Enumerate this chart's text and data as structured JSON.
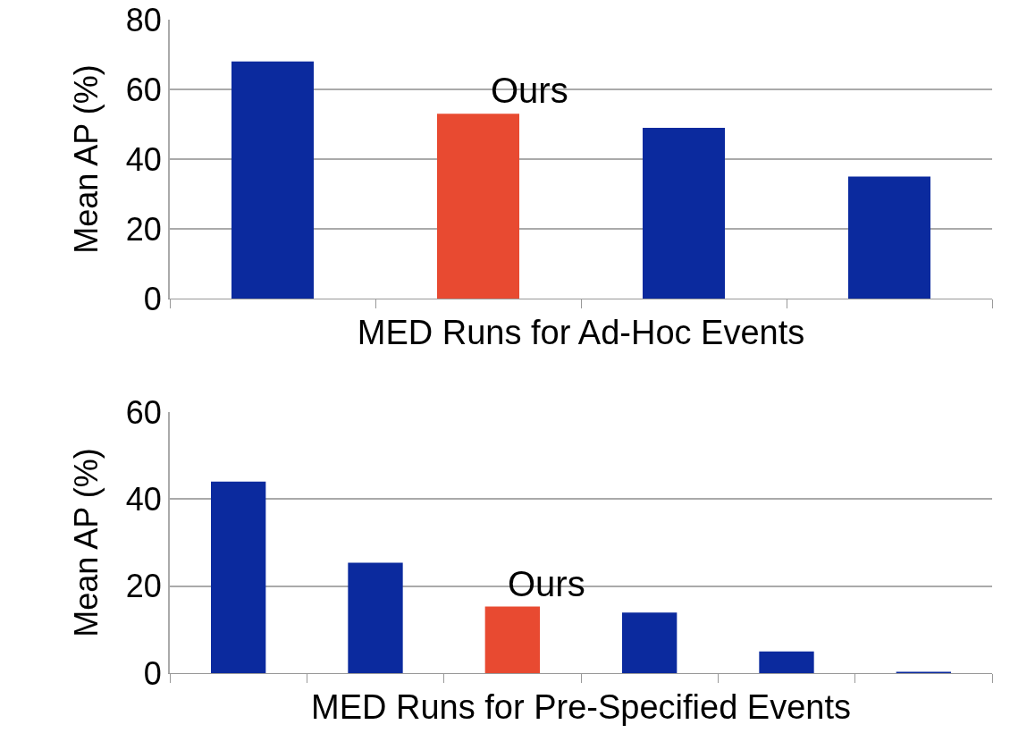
{
  "chart_data": [
    {
      "type": "bar",
      "xlabel": "MED Runs for Ad-Hoc Events",
      "ylabel": "Mean AP (%)",
      "categories": [
        null,
        null,
        null,
        null
      ],
      "values": [
        68,
        53,
        49,
        35
      ],
      "colors": [
        "#0b2a9e",
        "#e84a31",
        "#0b2a9e",
        "#0b2a9e"
      ],
      "ylim": [
        0,
        80
      ],
      "yticks": [
        0,
        20,
        40,
        60,
        80
      ],
      "grid": "y",
      "tick_labels": "y",
      "annotations": [
        "Ours"
      ]
    },
    {
      "type": "bar",
      "xlabel": "MED Runs for Pre-Specified Events",
      "ylabel": "Mean AP (%)",
      "categories": [
        null,
        null,
        null,
        null,
        null,
        null
      ],
      "values": [
        44,
        25.4,
        15.3,
        13.9,
        5,
        0.3
      ],
      "colors": [
        "#0b2a9e",
        "#0b2a9e",
        "#e84a31",
        "#0b2a9e",
        "#0b2a9e",
        "#0b2a9e"
      ],
      "ylim": [
        0,
        60
      ],
      "yticks": [
        0,
        20,
        40,
        60
      ],
      "grid": "y",
      "tick_labels": "y",
      "annotations": [
        "Ours"
      ]
    }
  ]
}
